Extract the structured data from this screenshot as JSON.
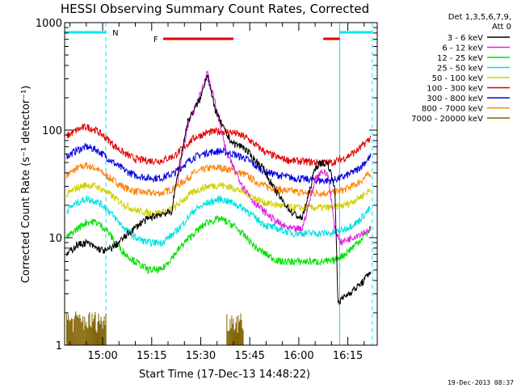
{
  "chart_data": {
    "type": "line",
    "title": "HESSI Observing Summary Count Rates, Corrected",
    "xlabel": "Start Time (17-Dec-13 14:48:22)",
    "ylabel": "Corrected Count Rate (s⁻¹ detector⁻¹)",
    "y_scale": "log",
    "ylim": [
      1,
      1000
    ],
    "xlim": [
      "14:48:22",
      "16:24:00"
    ],
    "x_ticks": [
      "15:00",
      "15:15",
      "15:30",
      "15:45",
      "16:00",
      "16:15"
    ],
    "y_ticks": [
      "1",
      "10",
      "100",
      "1000"
    ],
    "timestamp": "19-Dec-2013 08:37",
    "legend": {
      "header": [
        "Det 1,3,5,6,7,9,",
        "Att 0"
      ],
      "position": "right"
    },
    "flags": {
      "night_label": "N",
      "flare_label": "F",
      "night_color": "#00e5ff",
      "flare_color": "#e00000",
      "night_intervals": [
        [
          "14:48:22",
          "15:01:00"
        ],
        [
          "16:12:30",
          "16:22:30"
        ]
      ],
      "flare_intervals": [
        [
          "15:18:30",
          "15:40:00"
        ],
        [
          "16:07:30",
          "16:12:30"
        ]
      ]
    },
    "series": [
      {
        "name": "3 - 6 keV",
        "color": "#000000",
        "points": [
          [
            "14:49",
            7
          ],
          [
            "14:52",
            8.5
          ],
          [
            "14:55",
            9
          ],
          [
            "14:58",
            8
          ],
          [
            "15:01",
            7.5
          ],
          [
            "15:04",
            8.5
          ],
          [
            "15:08",
            11
          ],
          [
            "15:12",
            14
          ],
          [
            "15:16",
            16
          ],
          [
            "15:19",
            17
          ],
          [
            "15:21",
            17
          ],
          [
            "15:23",
            40
          ],
          [
            "15:26",
            120
          ],
          [
            "15:30",
            200
          ],
          [
            "15:32",
            340
          ],
          [
            "15:34",
            170
          ],
          [
            "15:36",
            120
          ],
          [
            "15:38",
            90
          ],
          [
            "15:40",
            75
          ],
          [
            "15:43",
            70
          ],
          [
            "15:46",
            55
          ],
          [
            "15:49",
            45
          ],
          [
            "15:52",
            30
          ],
          [
            "15:55",
            22
          ],
          [
            "15:58",
            17
          ],
          [
            "16:01",
            15
          ],
          [
            "16:03",
            25
          ],
          [
            "16:05",
            45
          ],
          [
            "16:07",
            50
          ],
          [
            "16:09",
            48
          ],
          [
            "16:11",
            30
          ],
          [
            "16:12",
            2.5
          ],
          [
            "16:15",
            3
          ],
          [
            "16:18",
            3.5
          ],
          [
            "16:20",
            4
          ],
          [
            "16:22",
            5
          ]
        ]
      },
      {
        "name": "6 - 12 keV",
        "color": "#e020e0",
        "points": [
          [
            "15:23",
            35
          ],
          [
            "15:26",
            110
          ],
          [
            "15:30",
            220
          ],
          [
            "15:32",
            350
          ],
          [
            "15:34",
            200
          ],
          [
            "15:36",
            110
          ],
          [
            "15:38",
            60
          ],
          [
            "15:40",
            45
          ],
          [
            "15:43",
            30
          ],
          [
            "15:46",
            22
          ],
          [
            "15:49",
            18
          ],
          [
            "15:52",
            15
          ],
          [
            "15:55",
            13
          ],
          [
            "15:58",
            12
          ],
          [
            "16:01",
            12
          ],
          [
            "16:03",
            20
          ],
          [
            "16:05",
            35
          ],
          [
            "16:07",
            42
          ],
          [
            "16:09",
            38
          ],
          [
            "16:11",
            12
          ],
          [
            "16:13",
            9
          ],
          [
            "16:16",
            10
          ],
          [
            "16:19",
            11
          ],
          [
            "16:22",
            12
          ]
        ]
      },
      {
        "name": "12 - 25 keV",
        "color": "#00e000",
        "points": [
          [
            "14:49",
            10
          ],
          [
            "14:52",
            12
          ],
          [
            "14:55",
            14
          ],
          [
            "14:58",
            14
          ],
          [
            "15:01",
            12
          ],
          [
            "15:04",
            9
          ],
          [
            "15:07",
            7
          ],
          [
            "15:10",
            6
          ],
          [
            "15:14",
            5
          ],
          [
            "15:18",
            5
          ],
          [
            "15:22",
            7
          ],
          [
            "15:25",
            9
          ],
          [
            "15:28",
            11
          ],
          [
            "15:32",
            14
          ],
          [
            "15:36",
            15
          ],
          [
            "15:40",
            13
          ],
          [
            "15:44",
            10
          ],
          [
            "15:47",
            8
          ],
          [
            "15:50",
            7
          ],
          [
            "15:54",
            6
          ],
          [
            "15:58",
            6
          ],
          [
            "16:02",
            6
          ],
          [
            "16:06",
            6
          ],
          [
            "16:10",
            6
          ],
          [
            "16:14",
            7
          ],
          [
            "16:18",
            9
          ],
          [
            "16:22",
            12
          ]
        ]
      },
      {
        "name": "25 - 50 keV",
        "color": "#00e0e0",
        "points": [
          [
            "14:49",
            18
          ],
          [
            "14:52",
            21
          ],
          [
            "14:55",
            23
          ],
          [
            "14:58",
            22
          ],
          [
            "15:01",
            19
          ],
          [
            "15:04",
            15
          ],
          [
            "15:07",
            12
          ],
          [
            "15:10",
            10
          ],
          [
            "15:14",
            9
          ],
          [
            "15:18",
            9
          ],
          [
            "15:22",
            11
          ],
          [
            "15:25",
            14
          ],
          [
            "15:28",
            18
          ],
          [
            "15:32",
            21
          ],
          [
            "15:36",
            23
          ],
          [
            "15:40",
            21
          ],
          [
            "15:44",
            18
          ],
          [
            "15:47",
            15
          ],
          [
            "15:50",
            13
          ],
          [
            "15:54",
            12
          ],
          [
            "15:58",
            11
          ],
          [
            "16:02",
            11
          ],
          [
            "16:06",
            11
          ],
          [
            "16:10",
            11
          ],
          [
            "16:14",
            12
          ],
          [
            "16:18",
            14
          ],
          [
            "16:22",
            19
          ]
        ]
      },
      {
        "name": "50 - 100 keV",
        "color": "#d0d000",
        "points": [
          [
            "14:49",
            25
          ],
          [
            "14:52",
            29
          ],
          [
            "14:55",
            31
          ],
          [
            "14:58",
            30
          ],
          [
            "15:01",
            27
          ],
          [
            "15:04",
            23
          ],
          [
            "15:07",
            20
          ],
          [
            "15:10",
            18
          ],
          [
            "15:14",
            17
          ],
          [
            "15:18",
            17
          ],
          [
            "15:22",
            19
          ],
          [
            "15:25",
            23
          ],
          [
            "15:28",
            27
          ],
          [
            "15:32",
            30
          ],
          [
            "15:36",
            31
          ],
          [
            "15:40",
            29
          ],
          [
            "15:44",
            26
          ],
          [
            "15:47",
            23
          ],
          [
            "15:50",
            21
          ],
          [
            "15:54",
            20
          ],
          [
            "15:58",
            19
          ],
          [
            "16:02",
            19
          ],
          [
            "16:06",
            19
          ],
          [
            "16:10",
            19
          ],
          [
            "16:14",
            20
          ],
          [
            "16:18",
            23
          ],
          [
            "16:22",
            28
          ]
        ]
      },
      {
        "name": "100 - 300 keV",
        "color": "#e00000",
        "points": [
          [
            "14:49",
            88
          ],
          [
            "14:52",
            100
          ],
          [
            "14:55",
            108
          ],
          [
            "14:58",
            100
          ],
          [
            "15:01",
            85
          ],
          [
            "15:04",
            70
          ],
          [
            "15:07",
            60
          ],
          [
            "15:10",
            54
          ],
          [
            "15:14",
            52
          ],
          [
            "15:18",
            52
          ],
          [
            "15:22",
            58
          ],
          [
            "15:25",
            70
          ],
          [
            "15:28",
            85
          ],
          [
            "15:32",
            95
          ],
          [
            "15:36",
            98
          ],
          [
            "15:40",
            95
          ],
          [
            "15:44",
            85
          ],
          [
            "15:47",
            72
          ],
          [
            "15:50",
            62
          ],
          [
            "15:54",
            55
          ],
          [
            "15:58",
            52
          ],
          [
            "16:02",
            51
          ],
          [
            "16:06",
            50
          ],
          [
            "16:10",
            50
          ],
          [
            "16:14",
            55
          ],
          [
            "16:18",
            65
          ],
          [
            "16:22",
            85
          ]
        ]
      },
      {
        "name": "300 - 800 keV",
        "color": "#0000e0",
        "points": [
          [
            "14:49",
            57
          ],
          [
            "14:52",
            65
          ],
          [
            "14:55",
            70
          ],
          [
            "14:58",
            66
          ],
          [
            "15:01",
            57
          ],
          [
            "15:04",
            48
          ],
          [
            "15:07",
            42
          ],
          [
            "15:10",
            38
          ],
          [
            "15:14",
            36
          ],
          [
            "15:18",
            36
          ],
          [
            "15:22",
            40
          ],
          [
            "15:25",
            48
          ],
          [
            "15:28",
            56
          ],
          [
            "15:32",
            62
          ],
          [
            "15:36",
            64
          ],
          [
            "15:40",
            60
          ],
          [
            "15:44",
            54
          ],
          [
            "15:47",
            46
          ],
          [
            "15:50",
            41
          ],
          [
            "15:54",
            38
          ],
          [
            "15:58",
            36
          ],
          [
            "16:02",
            35
          ],
          [
            "16:06",
            34
          ],
          [
            "16:10",
            34
          ],
          [
            "16:14",
            37
          ],
          [
            "16:18",
            43
          ],
          [
            "16:22",
            57
          ]
        ]
      },
      {
        "name": "800 - 7000 keV",
        "color": "#ff8000",
        "points": [
          [
            "14:49",
            38
          ],
          [
            "14:52",
            44
          ],
          [
            "14:55",
            47
          ],
          [
            "14:58",
            44
          ],
          [
            "15:01",
            38
          ],
          [
            "15:04",
            33
          ],
          [
            "15:07",
            29
          ],
          [
            "15:10",
            27
          ],
          [
            "15:14",
            26
          ],
          [
            "15:18",
            26
          ],
          [
            "15:22",
            29
          ],
          [
            "15:25",
            34
          ],
          [
            "15:28",
            40
          ],
          [
            "15:32",
            44
          ],
          [
            "15:36",
            45
          ],
          [
            "15:40",
            42
          ],
          [
            "15:44",
            38
          ],
          [
            "15:47",
            33
          ],
          [
            "15:50",
            30
          ],
          [
            "15:54",
            28
          ],
          [
            "15:58",
            27
          ],
          [
            "16:02",
            26
          ],
          [
            "16:06",
            26
          ],
          [
            "16:10",
            26
          ],
          [
            "16:14",
            28
          ],
          [
            "16:18",
            32
          ],
          [
            "16:22",
            40
          ]
        ]
      },
      {
        "name": "7000 - 20000 keV",
        "color": "#806000",
        "points": []
      }
    ]
  }
}
